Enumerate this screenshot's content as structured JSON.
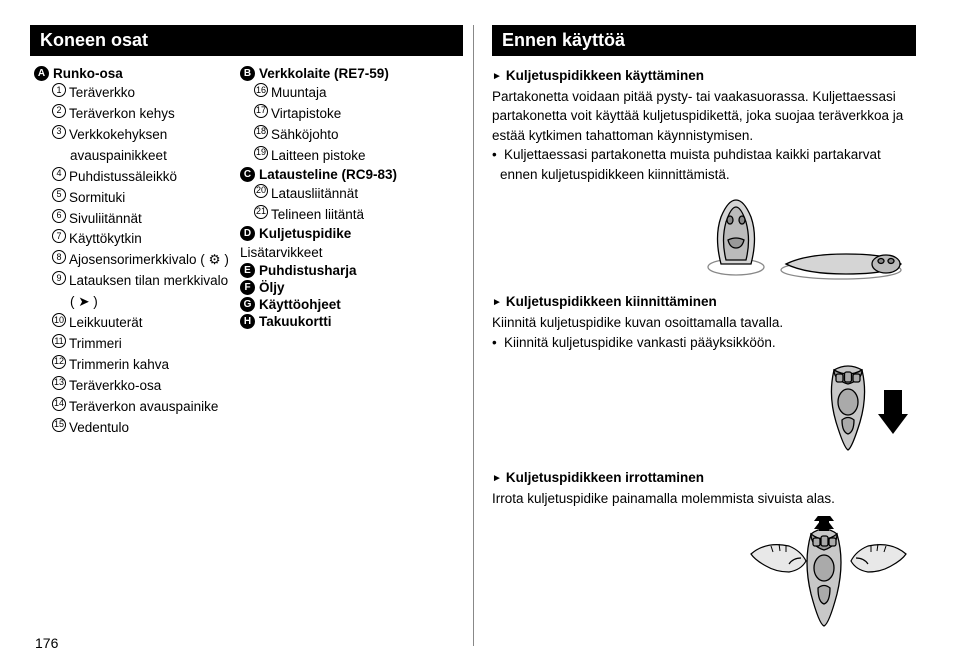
{
  "pageNumber": "176",
  "left": {
    "header": "Koneen osat",
    "groupA": {
      "letter": "A",
      "title": "Runko-osa",
      "items": [
        {
          "n": "1",
          "t": "Teräverkko"
        },
        {
          "n": "2",
          "t": "Teräverkon kehys"
        },
        {
          "n": "3",
          "t": "Verkkokehyksen"
        },
        {
          "n": "",
          "t": "avauspainikkeet",
          "cont": true
        },
        {
          "n": "4",
          "t": "Puhdistussäleikkö"
        },
        {
          "n": "5",
          "t": "Sormituki"
        },
        {
          "n": "6",
          "t": "Sivuliitännät"
        },
        {
          "n": "7",
          "t": "Käyttökytkin"
        },
        {
          "n": "8",
          "t": "Ajosensorimerkkivalo (",
          "sym": "sensor"
        },
        {
          "n": "9",
          "t": "Latauksen tilan merkkivalo"
        },
        {
          "n": "",
          "t": "(",
          "cont": true,
          "sym": "plug"
        },
        {
          "n": "10",
          "t": "Leikkuuterät"
        },
        {
          "n": "11",
          "t": "Trimmeri"
        },
        {
          "n": "12",
          "t": "Trimmerin kahva"
        },
        {
          "n": "13",
          "t": "Teräverkko-osa"
        },
        {
          "n": "14",
          "t": "Teräverkon avauspainike"
        },
        {
          "n": "15",
          "t": "Vedentulo"
        }
      ]
    },
    "groupB": {
      "letter": "B",
      "title": "Verkkolaite (RE7-59)",
      "items": [
        {
          "n": "16",
          "t": "Muuntaja"
        },
        {
          "n": "17",
          "t": "Virtapistoke"
        },
        {
          "n": "18",
          "t": "Sähköjohto"
        },
        {
          "n": "19",
          "t": "Laitteen pistoke"
        }
      ]
    },
    "groupC": {
      "letter": "C",
      "title": "Latausteline (RC9-83)",
      "items": [
        {
          "n": "20",
          "t": "Latausliitännät"
        },
        {
          "n": "21",
          "t": "Telineen liitäntä"
        }
      ]
    },
    "groupD": {
      "letter": "D",
      "title": "Kuljetuspidike",
      "sub": "Lisätarvikkeet"
    },
    "groupE": {
      "letter": "E",
      "title": "Puhdistusharja"
    },
    "groupF": {
      "letter": "F",
      "title": "Öljy"
    },
    "groupG": {
      "letter": "G",
      "title": "Käyttöohjeet"
    },
    "groupH": {
      "letter": "H",
      "title": "Takuukortti"
    }
  },
  "right": {
    "header": "Ennen käyttöä",
    "sec1": {
      "head": "Kuljetuspidikkeen käyttäminen",
      "p1": "Partakonetta voidaan pitää pysty- tai vaakasuorassa. Kuljettaessasi partakonetta voit käyttää kuljetuspidikettä, joka suojaa teräverkkoa ja estää kytkimen tahattoman käynnistymisen.",
      "b1": "Kuljettaessasi partakonetta muista puhdistaa kaikki partakarvat ennen kuljetuspidikkeen kiinnittämistä."
    },
    "sec2": {
      "head": "Kuljetuspidikkeen kiinnittäminen",
      "p1": "Kiinnitä kuljetuspidike kuvan osoittamalla tavalla.",
      "b1": "Kiinnitä kuljetuspidike vankasti pääyksikköön."
    },
    "sec3": {
      "head": "Kuljetuspidikkeen irrottaminen",
      "p1": "Irrota kuljetuspidike painamalla molemmista sivuista alas."
    }
  }
}
